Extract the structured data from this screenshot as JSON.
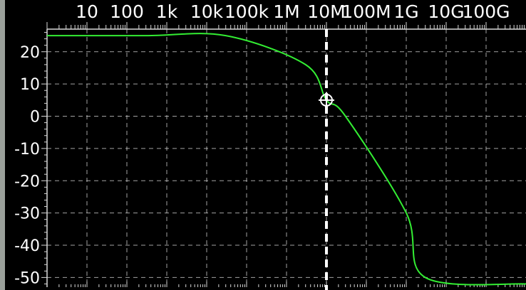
{
  "chart_data": {
    "type": "line",
    "title": "",
    "xlabel": "",
    "ylabel": "",
    "xscale": "log",
    "xlim": [
      1,
      1000000000000
    ],
    "ylim": [
      -53,
      27
    ],
    "x_tick_values": [
      10,
      100,
      1000,
      10000,
      100000,
      1000000,
      10000000,
      100000000,
      1000000000,
      10000000000,
      100000000000
    ],
    "x_tick_labels": [
      "10",
      "100",
      "1k",
      "10k",
      "100k",
      "1M",
      "10M",
      "100M",
      "1G",
      "10G",
      "100G"
    ],
    "y_tick_values": [
      20,
      10,
      0,
      -10,
      -20,
      -30,
      -40,
      -50
    ],
    "y_tick_labels": [
      "20",
      "10",
      "0",
      "-10",
      "-20",
      "-30",
      "-40",
      "-50"
    ],
    "grid": true,
    "legend": "none",
    "cursor": {
      "x": 10000000,
      "y": 5
    },
    "series": [
      {
        "color": "#33ee33",
        "x": [
          1,
          300,
          30000,
          3000000,
          10000000,
          30000000,
          1000000000,
          3000000000,
          1000000000000
        ],
        "y": [
          25,
          25,
          25,
          16,
          5,
          0,
          -30,
          -50,
          -52
        ]
      }
    ]
  },
  "colors": {
    "background": "#000000",
    "trace": "#33ee33",
    "grid": "#d8d8d8",
    "cursor": "#ffffff",
    "text": "#ffffff",
    "left_frame": "#9aa09a"
  }
}
